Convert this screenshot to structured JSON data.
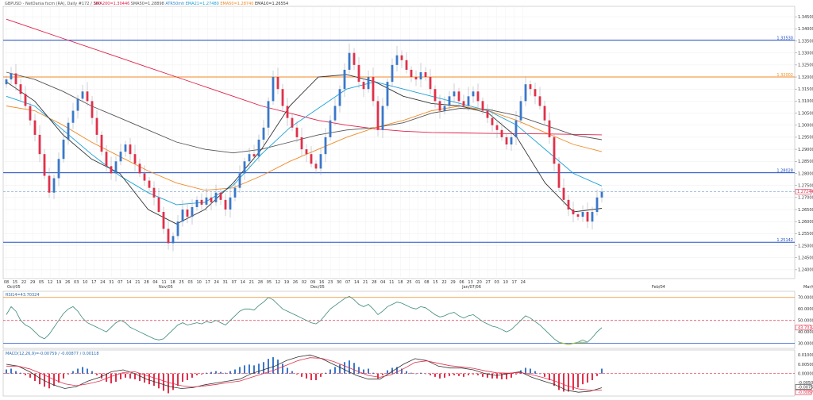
{
  "header": {
    "symbol": "GBPUSD - NetDania fxcm (RA), Daily #172 / 360",
    "indicators": [
      {
        "label": "SMA200=1.30446",
        "color": "#e0204a"
      },
      {
        "label": "SMA50=1.28898",
        "color": "#555555"
      },
      {
        "label": "ATR50mh",
        "color": "#2a88c8"
      },
      {
        "label": "EMA21=1.27480",
        "color": "#1aa0d6"
      },
      {
        "label": "EMA50=1.28740",
        "color": "#f08a24"
      },
      {
        "label": "EMA10=1.26554",
        "color": "#333333"
      }
    ]
  },
  "colors": {
    "bull": "#3a78c9",
    "bear": "#e0304a"
  },
  "chart_data": [
    {
      "type": "candlestick",
      "name": "price",
      "y_axis_ticks": [
        "1.34500",
        "1.34000",
        "1.33500",
        "1.33000",
        "1.32500",
        "1.32000",
        "1.31500",
        "1.31000",
        "1.30500",
        "1.30000",
        "1.29500",
        "1.29000",
        "1.28500",
        "1.28000",
        "1.27500",
        "1.27000",
        "1.26500",
        "1.26000",
        "1.25500",
        "1.25000",
        "1.24500",
        "1.24000"
      ],
      "ylim": [
        1.237,
        1.349
      ],
      "current_price": "1.27244",
      "current_value": 1.27244,
      "horizontal_lines": [
        {
          "value": 1.3353,
          "label": "1.33530",
          "color": "#2050c8"
        },
        {
          "value": 1.32002,
          "label": "1.32002",
          "color": "#f08a24"
        },
        {
          "value": 1.28028,
          "label": "1.28028",
          "color": "#2050c8"
        },
        {
          "value": 1.25142,
          "label": "1.25142",
          "color": "#2050c8"
        }
      ],
      "x_labels": [
        "08",
        "15",
        "22",
        "29",
        "05",
        "12",
        "19",
        "26",
        "03",
        "10",
        "17",
        "24",
        "31",
        "07",
        "14",
        "21",
        "28",
        "04",
        "11",
        "18",
        "25",
        "03",
        "10",
        "17",
        "24",
        "31",
        "07",
        "14",
        "21",
        "28",
        "05",
        "12",
        "19",
        "26",
        "02",
        "09",
        "16",
        "23",
        "30",
        "07",
        "14",
        "21",
        "28",
        "04",
        "11",
        "18",
        "25",
        "01",
        "08",
        "15",
        "22",
        "29",
        "06",
        "13",
        "20",
        "27",
        "03",
        "10",
        "17",
        "24"
      ],
      "month_labels": [
        {
          "label": "Oct/05",
          "index": 0
        },
        {
          "label": "Nov/05",
          "index": 4
        },
        {
          "label": "Dec/05",
          "index": 8
        },
        {
          "label": "Jan/07/06",
          "index": 12
        },
        {
          "label": "Feb/04",
          "index": 17
        },
        {
          "label": "Mar/04",
          "index": 21
        },
        {
          "label": "Apr/06",
          "index": 26
        },
        {
          "label": "May/06",
          "index": 30
        },
        {
          "label": "Jun/03",
          "index": 34
        },
        {
          "label": "Jul/06",
          "index": 39
        },
        {
          "label": "Aug/05",
          "index": 43
        }
      ],
      "close": [
        1.319,
        1.3215,
        1.317,
        1.313,
        1.308,
        1.302,
        1.296,
        1.288,
        1.279,
        1.272,
        1.278,
        1.286,
        1.294,
        1.301,
        1.306,
        1.311,
        1.314,
        1.31,
        1.303,
        1.296,
        1.289,
        1.283,
        1.28,
        1.285,
        1.289,
        1.292,
        1.288,
        1.284,
        1.28,
        1.277,
        1.274,
        1.27,
        1.264,
        1.257,
        1.251,
        1.254,
        1.26,
        1.265,
        1.262,
        1.266,
        1.269,
        1.267,
        1.27,
        1.268,
        1.272,
        1.269,
        1.265,
        1.27,
        1.274,
        1.28,
        1.285,
        1.288,
        1.287,
        1.294,
        1.299,
        1.31,
        1.32,
        1.315,
        1.308,
        1.303,
        1.299,
        1.295,
        1.29,
        1.288,
        1.284,
        1.282,
        1.288,
        1.295,
        1.302,
        1.308,
        1.315,
        1.323,
        1.33,
        1.325,
        1.318,
        1.315,
        1.32,
        1.31,
        1.298,
        1.308,
        1.318,
        1.325,
        1.329,
        1.327,
        1.323,
        1.32,
        1.319,
        1.322,
        1.32,
        1.315,
        1.31,
        1.306,
        1.308,
        1.312,
        1.314,
        1.31,
        1.308,
        1.312,
        1.314,
        1.31,
        1.306,
        1.303,
        1.3,
        1.298,
        1.295,
        1.292,
        1.295,
        1.302,
        1.31,
        1.317,
        1.315,
        1.312,
        1.308,
        1.302,
        1.295,
        1.284,
        1.274,
        1.269,
        1.265,
        1.263,
        1.262,
        1.264,
        1.26,
        1.264,
        1.27,
        1.2724
      ],
      "series": [
        {
          "name": "SMA200",
          "color": "#e0204a",
          "values": [
            1.344,
            1.34,
            1.336,
            1.332,
            1.328,
            1.324,
            1.32,
            1.316,
            1.312,
            1.308,
            1.305,
            1.302,
            1.3,
            1.2985,
            1.2975,
            1.297,
            1.2968,
            1.2966,
            1.2965,
            1.2964,
            1.2962,
            1.296
          ]
        },
        {
          "name": "SMA50",
          "color": "#555555",
          "values": [
            1.322,
            1.319,
            1.314,
            1.308,
            1.303,
            1.298,
            1.293,
            1.29,
            1.2885,
            1.29,
            1.293,
            1.296,
            1.298,
            1.299,
            1.301,
            1.305,
            1.307,
            1.3065,
            1.304,
            1.3,
            1.296,
            1.294
          ]
        },
        {
          "name": "EMA50",
          "color": "#f08a24",
          "values": [
            1.308,
            1.306,
            1.3,
            1.293,
            1.287,
            1.281,
            1.276,
            1.273,
            1.274,
            1.279,
            1.285,
            1.29,
            1.295,
            1.299,
            1.302,
            1.306,
            1.308,
            1.306,
            1.302,
            1.297,
            1.292,
            1.289
          ]
        },
        {
          "name": "EMA21",
          "color": "#1aa0d6",
          "values": [
            1.312,
            1.308,
            1.298,
            1.288,
            1.279,
            1.272,
            1.267,
            1.268,
            1.275,
            1.288,
            1.299,
            1.307,
            1.315,
            1.318,
            1.315,
            1.312,
            1.309,
            1.306,
            1.3,
            1.29,
            1.28,
            1.2748
          ]
        },
        {
          "name": "EMA10",
          "color": "#333333",
          "values": [
            1.318,
            1.31,
            1.296,
            1.286,
            1.28,
            1.265,
            1.259,
            1.265,
            1.276,
            1.29,
            1.308,
            1.32,
            1.321,
            1.318,
            1.312,
            1.309,
            1.308,
            1.305,
            1.295,
            1.276,
            1.264,
            1.2655
          ]
        }
      ]
    },
    {
      "type": "line",
      "name": "RSI",
      "label": "RSI14=43.70324",
      "y_axis_ticks": [
        "70.00000",
        "60.00000",
        "50.00000",
        "43.70324",
        "40.00000",
        "30.00000"
      ],
      "ylim": [
        27,
        74
      ],
      "levels": [
        {
          "value": 70,
          "color": "#f08a24"
        },
        {
          "value": 50,
          "color": "#e0304a",
          "dashed": true
        },
        {
          "value": 30,
          "color": "#2050c8"
        }
      ],
      "current_value": 43.7,
      "values": [
        55,
        62,
        58,
        50,
        46,
        44,
        40,
        36,
        34,
        38,
        44,
        50,
        56,
        60,
        62,
        58,
        52,
        48,
        46,
        44,
        42,
        40,
        44,
        48,
        50,
        48,
        44,
        42,
        40,
        38,
        36,
        34,
        33,
        34,
        38,
        42,
        46,
        48,
        46,
        47,
        48,
        47,
        49,
        48,
        50,
        48,
        46,
        50,
        54,
        58,
        60,
        60,
        59,
        63,
        66,
        70,
        68,
        64,
        60,
        58,
        56,
        54,
        52,
        50,
        48,
        47,
        50,
        55,
        60,
        63,
        66,
        69,
        71,
        68,
        64,
        62,
        64,
        60,
        55,
        58,
        62,
        64,
        66,
        65,
        63,
        61,
        60,
        62,
        61,
        58,
        55,
        53,
        54,
        56,
        57,
        54,
        52,
        54,
        55,
        52,
        49,
        47,
        45,
        44,
        42,
        40,
        42,
        46,
        50,
        54,
        52,
        49,
        46,
        42,
        38,
        34,
        31,
        30,
        29,
        30,
        31,
        33,
        31,
        35,
        40,
        43.7
      ]
    },
    {
      "type": "bar",
      "name": "MACD",
      "label": "MACD(12,26,9)=-0.00759 / -0.00877 / 0.00118",
      "y_axis_ticks": [
        "0.01000",
        "0.00500",
        "0.00000",
        "-0.00500",
        "-0.00759",
        "-0.00877"
      ],
      "ylim": [
        -0.0112,
        0.0118
      ],
      "histogram": [
        0.001,
        0.0012,
        0.0006,
        0.0002,
        -0.0004,
        -0.001,
        -0.0018,
        -0.0026,
        -0.0032,
        -0.0036,
        -0.003,
        -0.0022,
        -0.0012,
        -0.0002,
        0.0006,
        0.0012,
        0.0016,
        0.0012,
        0.0006,
        -0.0004,
        -0.0012,
        -0.002,
        -0.0024,
        -0.002,
        -0.0014,
        -0.001,
        -0.0012,
        -0.0014,
        -0.0018,
        -0.0022,
        -0.0026,
        -0.003,
        -0.0036,
        -0.0042,
        -0.0048,
        -0.004,
        -0.003,
        -0.002,
        -0.0016,
        -0.001,
        -0.0004,
        -0.0002,
        0.0002,
        0.0004,
        0.0006,
        0.0004,
        0.0002,
        0.0006,
        0.001,
        0.0016,
        0.002,
        0.0022,
        0.002,
        0.0024,
        0.0028,
        0.0036,
        0.004,
        0.0034,
        0.0024,
        0.0014,
        0.0006,
        -0.0002,
        -0.0008,
        -0.0012,
        -0.0016,
        -0.0016,
        -0.0008,
        0.0002,
        0.001,
        0.0016,
        0.0022,
        0.0028,
        0.0032,
        0.0026,
        0.0016,
        0.001,
        0.0012,
        0.0002,
        -0.0012,
        -0.0004,
        0.0008,
        0.0014,
        0.0016,
        0.0012,
        0.0006,
        0.0002,
        0.0,
        0.0002,
        0.0,
        -0.0004,
        -0.0008,
        -0.0012,
        -0.001,
        -0.0006,
        -0.0004,
        -0.0006,
        -0.0008,
        -0.0004,
        -0.0002,
        -0.0004,
        -0.0008,
        -0.001,
        -0.0012,
        -0.0012,
        -0.0014,
        -0.0014,
        -0.001,
        -0.0002,
        0.0008,
        0.0014,
        0.0012,
        0.0006,
        0.0,
        -0.0008,
        -0.0016,
        -0.003,
        -0.004,
        -0.0044,
        -0.0044,
        -0.004,
        -0.0034,
        -0.0026,
        -0.0022,
        -0.0016,
        -0.0006,
        0.0012
      ],
      "series": [
        {
          "name": "MACD",
          "color": "#333333",
          "values": [
            0.005,
            0.004,
            0.001,
            -0.003,
            -0.006,
            -0.008,
            -0.007,
            -0.004,
            -0.002,
            0.001,
            0.002,
            0.0,
            -0.003,
            -0.005,
            -0.007,
            -0.008,
            -0.0075,
            -0.006,
            -0.005,
            -0.004,
            -0.003,
            0.0,
            0.002,
            0.004,
            0.007,
            0.009,
            0.01,
            0.008,
            0.005,
            0.002,
            -0.001,
            -0.003,
            -0.003,
            0.001,
            0.005,
            0.008,
            0.007,
            0.004,
            0.003,
            0.003,
            0.002,
            0.0,
            -0.001,
            0.0,
            0.001,
            -0.002,
            -0.004,
            -0.006,
            -0.009,
            -0.01,
            -0.0095,
            -0.0076
          ]
        },
        {
          "name": "Signal",
          "color": "#e0304a",
          "values": [
            0.004,
            0.004,
            0.0025,
            0.0,
            -0.003,
            -0.0055,
            -0.0065,
            -0.0055,
            -0.004,
            -0.0015,
            0.0005,
            0.001,
            -0.001,
            -0.003,
            -0.005,
            -0.0065,
            -0.0072,
            -0.0066,
            -0.0058,
            -0.0048,
            -0.004,
            -0.002,
            0.0,
            0.002,
            0.0045,
            0.007,
            0.0085,
            0.0082,
            0.0065,
            0.004,
            0.0015,
            -0.001,
            -0.002,
            -0.0005,
            0.0025,
            0.006,
            0.0068,
            0.0055,
            0.0042,
            0.0036,
            0.0028,
            0.0015,
            0.0004,
            0.0002,
            0.0006,
            -0.0006,
            -0.0022,
            -0.004,
            -0.0065,
            -0.0082,
            -0.009,
            -0.0088
          ]
        }
      ]
    }
  ]
}
